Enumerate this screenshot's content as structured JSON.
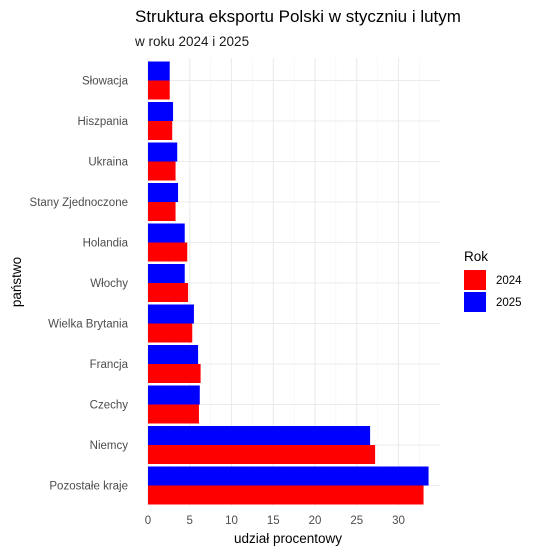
{
  "chart_data": {
    "type": "bar",
    "orientation": "horizontal",
    "title": "Struktura eksportu Polski w styczniu i lutym",
    "subtitle": "w roku 2024 i 2025",
    "xlabel": "udział procentowy",
    "ylabel": "państwo",
    "xlim": [
      0,
      35
    ],
    "x_ticks": [
      0,
      5,
      10,
      15,
      20,
      25,
      30
    ],
    "grid": true,
    "legend": {
      "title": "Rok",
      "position": "right"
    },
    "categories": [
      "Słowacja",
      "Hiszpania",
      "Ukraina",
      "Stany Zjednoczone",
      "Holandia",
      "Włochy",
      "Wielka Brytania",
      "Francja",
      "Czechy",
      "Niemcy",
      "Pozostałe kraje"
    ],
    "series": [
      {
        "name": "2024",
        "color": "#ff0000",
        "values": [
          2.6,
          2.9,
          3.3,
          3.3,
          4.7,
          4.8,
          5.3,
          6.3,
          6.1,
          27.2,
          33.0
        ]
      },
      {
        "name": "2025",
        "color": "#0000ff",
        "values": [
          2.6,
          3.0,
          3.5,
          3.6,
          4.4,
          4.4,
          5.5,
          6.0,
          6.2,
          26.6,
          33.6
        ]
      }
    ]
  }
}
